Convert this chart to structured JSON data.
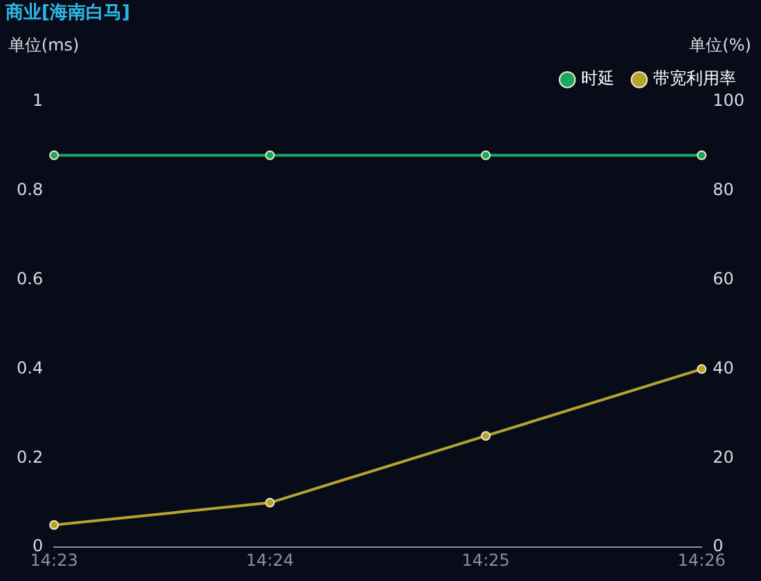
{
  "chart_data": {
    "type": "line",
    "title": "商业[海南白马]",
    "ylabel": "单位(ms)",
    "y2label": "单位(%)",
    "categories": [
      "14:23",
      "14:24",
      "14:25",
      "14:26"
    ],
    "series": [
      {
        "name": "时延",
        "color": "#17a866",
        "values": [
          0.88,
          0.88,
          0.88,
          0.88
        ]
      },
      {
        "name": "带宽利用率",
        "color": "#b5a231",
        "values": [
          5,
          10,
          25,
          40
        ],
        "axis": "y2"
      }
    ],
    "ylim": [
      0,
      1
    ],
    "yticks": [
      0,
      0.2,
      0.4,
      0.6,
      0.8,
      1
    ],
    "y2lim": [
      0,
      100
    ],
    "y2ticks": [
      0,
      20,
      40,
      60,
      80,
      100
    ],
    "grid": false,
    "legend": "top right",
    "marker": "circle",
    "line_style": "solid"
  }
}
